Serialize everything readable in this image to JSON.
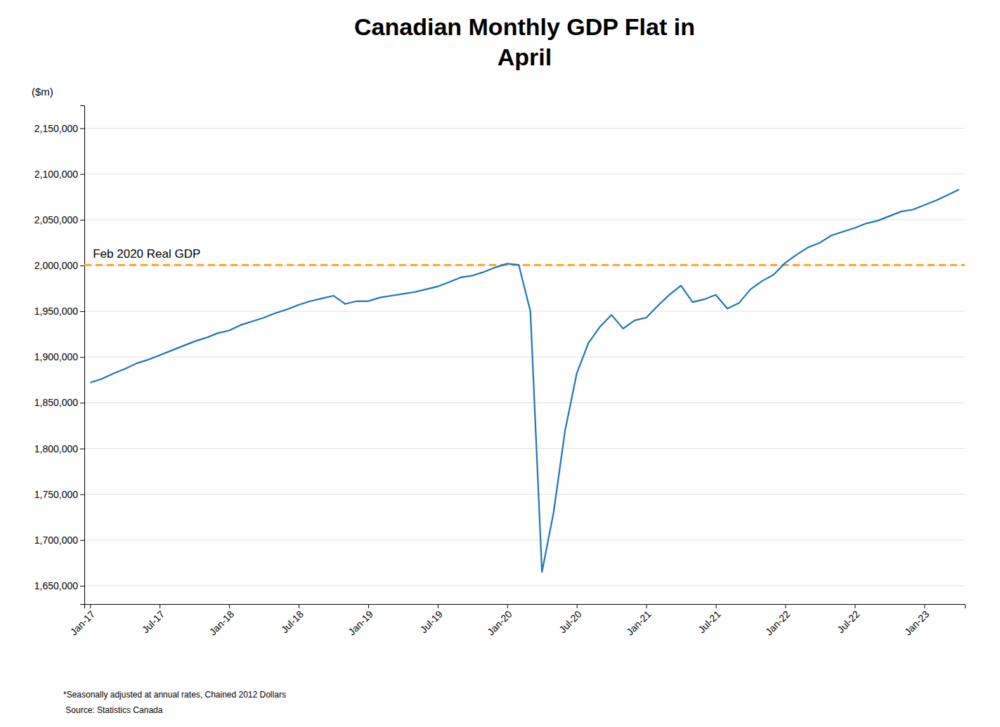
{
  "chart_data": {
    "type": "line",
    "title": "Canadian Monthly GDP Flat in\nApril",
    "ylabel": "($m)",
    "color": "#2176AE",
    "grid": true,
    "ref_line": {
      "value": 2000600,
      "label": "Feb 2020 Real GDP",
      "color": "#F5A623"
    },
    "footnotes": [
      "*Seasonally adjusted at annual rates, Chained 2012 Dollars",
      " Source: Statistics Canada"
    ],
    "ylim": [
      1630000,
      2175000
    ],
    "yticks": [
      {
        "value": 1650000,
        "label": "1,650,000"
      },
      {
        "value": 1700000,
        "label": "1,700,000"
      },
      {
        "value": 1750000,
        "label": "1,750,000"
      },
      {
        "value": 1800000,
        "label": "1,800,000"
      },
      {
        "value": 1850000,
        "label": "1,850,000"
      },
      {
        "value": 1900000,
        "label": "1,900,000"
      },
      {
        "value": 1950000,
        "label": "1,950,000"
      },
      {
        "value": 2000000,
        "label": "2,000,000"
      },
      {
        "value": 2050000,
        "label": "2,050,000"
      },
      {
        "value": 2100000,
        "label": "2,100,000"
      },
      {
        "value": 2150000,
        "label": "2,150,000"
      }
    ],
    "categories": [
      "Jan-17",
      null,
      null,
      null,
      null,
      null,
      "Jul-17",
      null,
      null,
      null,
      null,
      null,
      "Jan-18",
      null,
      null,
      null,
      null,
      null,
      "Jul-18",
      null,
      null,
      null,
      null,
      null,
      "Jan-19",
      null,
      null,
      null,
      null,
      null,
      "Jul-19",
      null,
      null,
      null,
      null,
      null,
      "Jan-20",
      null,
      null,
      null,
      null,
      null,
      "Jul-20",
      null,
      null,
      null,
      null,
      null,
      "Jan-21",
      null,
      null,
      null,
      null,
      null,
      "Jul-21",
      null,
      null,
      null,
      null,
      null,
      "Jan-22",
      null,
      null,
      null,
      null,
      null,
      "Jul-22",
      null,
      null,
      null,
      null,
      null,
      "Jan-23",
      null,
      null,
      null
    ],
    "values": [
      1872000,
      1876000,
      1882000,
      1887000,
      1893000,
      1897000,
      1902000,
      1907000,
      1912000,
      1917000,
      1921000,
      1926000,
      1929000,
      1935000,
      1939000,
      1943000,
      1948000,
      1952000,
      1957000,
      1961000,
      1964000,
      1967000,
      1958000,
      1961000,
      1961000,
      1965000,
      1967000,
      1969000,
      1971000,
      1974000,
      1977000,
      1982000,
      1987000,
      1989000,
      1993000,
      1998000,
      2002000,
      2000600,
      1950000,
      1665000,
      1730000,
      1820000,
      1882000,
      1915000,
      1933000,
      1946000,
      1931000,
      1940000,
      1943000,
      1956000,
      1968000,
      1978000,
      1960000,
      1963000,
      1968000,
      1953000,
      1959000,
      1974000,
      1983000,
      1990000,
      2003000,
      2012000,
      2020000,
      2025000,
      2033000,
      2037000,
      2041000,
      2046000,
      2049000,
      2054000,
      2059000,
      2061000,
      2066000,
      2071000,
      2077000,
      2083000
    ]
  }
}
